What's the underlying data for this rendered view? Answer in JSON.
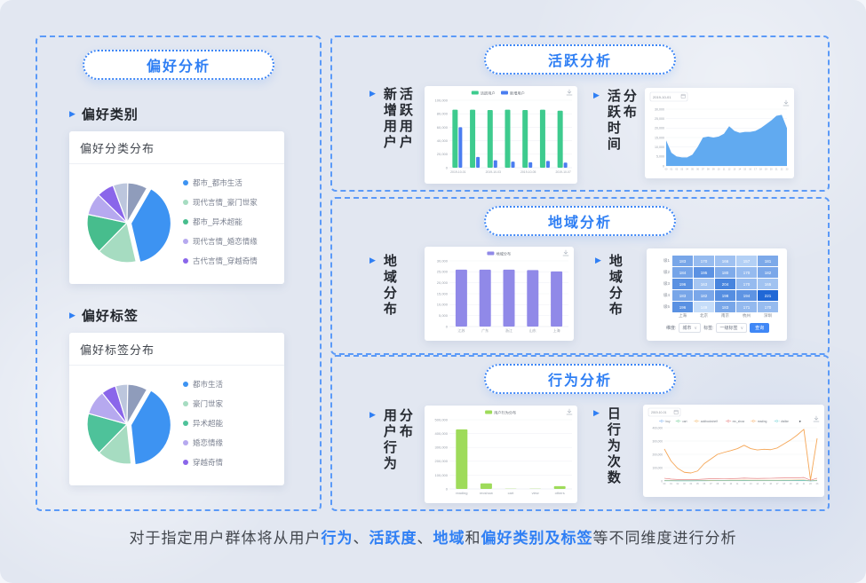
{
  "colors": {
    "accent": "#2f7ff4",
    "dashed_border": "#5b9af8",
    "background": "#e2e7f1",
    "card": "#ffffff"
  },
  "preference": {
    "title": "偏好分析",
    "sub1": {
      "heading": "偏好类别",
      "card_title": "偏好分类分布"
    },
    "sub2": {
      "heading": "偏好标签",
      "card_title": "偏好标签分布"
    }
  },
  "active": {
    "title": "活跃分析",
    "label1a": "新增用户",
    "label1b": "活跃用户",
    "label2a": "活跃时间",
    "label2b": "分布"
  },
  "region": {
    "title": "地域分析",
    "label1": "地域分布",
    "label2": "地域分布"
  },
  "behavior": {
    "title": "行为分析",
    "label1a": "用户行为",
    "label1b": "分布",
    "label2": "日行为次数"
  },
  "caption_parts": [
    {
      "text": "对于指定用户群体将从用户",
      "hl": false
    },
    {
      "text": "行为",
      "hl": true
    },
    {
      "text": "、",
      "hl": false
    },
    {
      "text": "活跃度",
      "hl": true
    },
    {
      "text": "、",
      "hl": false
    },
    {
      "text": "地域",
      "hl": true
    },
    {
      "text": "和",
      "hl": false
    },
    {
      "text": "偏好类别及标签",
      "hl": true
    },
    {
      "text": "等不同维度进行分析",
      "hl": false
    }
  ],
  "chart_data": [
    {
      "id": "pref_category_pie",
      "type": "pie",
      "title": "偏好分类分布",
      "start_deg": 30,
      "slices": [
        {
          "label": "都市_都市生活",
          "value": 38,
          "color": "#3d93f2",
          "offset": true
        },
        {
          "label": "现代言情_豪门世家",
          "value": 16,
          "color": "#a6dcc1"
        },
        {
          "label": "都市_异术超能",
          "value": 16,
          "color": "#47bd8d"
        },
        {
          "label": "现代言情_婚恋情缘",
          "value": 9,
          "color": "#b6a9ef"
        },
        {
          "label": "古代言情_穿越奇情",
          "value": 7,
          "color": "#8a66ea"
        },
        {
          "label": "",
          "value": 6,
          "color": "#bcc6dd"
        },
        {
          "label": "",
          "value": 8,
          "color": "#8f9cbb"
        }
      ]
    },
    {
      "id": "pref_tag_pie",
      "type": "pie",
      "title": "偏好标签分布",
      "start_deg": 30,
      "slices": [
        {
          "label": "都市生活",
          "value": 40,
          "color": "#3d93f2",
          "offset": true
        },
        {
          "label": "豪门世家",
          "value": 14,
          "color": "#a6dcc1"
        },
        {
          "label": "异术超能",
          "value": 17,
          "color": "#4ec29a"
        },
        {
          "label": "婚恋情缘",
          "value": 10,
          "color": "#b6a9ef"
        },
        {
          "label": "穿越奇情",
          "value": 6,
          "color": "#8a66ea"
        },
        {
          "label": "",
          "value": 5,
          "color": "#bcc6dd"
        },
        {
          "label": "",
          "value": 8,
          "color": "#8f9cbb"
        }
      ]
    },
    {
      "id": "active_users",
      "type": "grouped_bar",
      "ylim": [
        0,
        100000
      ],
      "ytick": 20000,
      "categories": [
        "2019-10-01",
        "2019-10-02",
        "2019-10-03",
        "2019-10-04",
        "2019-10-05",
        "2019-10-06",
        "2019-10-07"
      ],
      "x_labels_shown": [
        0,
        2,
        4,
        6
      ],
      "series": [
        {
          "name": "活跃用户",
          "color": "#3ecb8e",
          "values": [
            86000,
            86000,
            85500,
            86000,
            85500,
            86000,
            84500
          ]
        },
        {
          "name": "新增用户",
          "color": "#4a7df0",
          "values": [
            60000,
            16000,
            11000,
            9000,
            8000,
            10000,
            7500
          ]
        }
      ]
    },
    {
      "id": "active_time",
      "type": "area",
      "date_filter": "2019-10-01",
      "color": "#58a5ef",
      "ylim": [
        0,
        30000
      ],
      "ytick": 5000,
      "x": [
        "00",
        "01",
        "02",
        "03",
        "04",
        "05",
        "06",
        "07",
        "08",
        "09",
        "10",
        "11",
        "12",
        "13",
        "14",
        "15",
        "16",
        "17",
        "18",
        "19",
        "20",
        "21",
        "22",
        "23"
      ],
      "values": [
        13500,
        7000,
        5000,
        4500,
        4500,
        6000,
        10000,
        15000,
        15500,
        15000,
        15500,
        17000,
        21000,
        18500,
        17500,
        18000,
        18000,
        18500,
        20000,
        22000,
        24000,
        26500,
        27000,
        20000
      ]
    },
    {
      "id": "region_bar",
      "type": "bar",
      "legend": "地域分布",
      "color": "#9089e8",
      "ylim": [
        0,
        30000
      ],
      "ytick": 5000,
      "categories": [
        "江苏",
        "广东",
        "浙江",
        "山东",
        "上海"
      ],
      "values": [
        26000,
        26000,
        26000,
        25800,
        25200
      ]
    },
    {
      "id": "region_heatmap",
      "type": "heatmap",
      "rows": [
        "级1",
        "级2",
        "级3",
        "级4",
        "级5"
      ],
      "cols": [
        "上海",
        "北京",
        "南京",
        "杭州",
        "深圳"
      ],
      "values": [
        [
          183,
          170,
          166,
          157,
          181
        ],
        [
          184,
          195,
          180,
          170,
          182
        ],
        [
          196,
          163,
          204,
          170,
          165
        ],
        [
          183,
          182,
          198,
          194,
          221
        ],
        [
          196,
          149,
          183,
          171,
          170
        ]
      ],
      "controls": {
        "dim_label": "维度:",
        "dim_value": "城市",
        "tag_label": "标签:",
        "tag_value": "一级标签",
        "button": "查询"
      }
    },
    {
      "id": "behavior_bar",
      "type": "bar",
      "legend": "用户行为分布",
      "color": "#9edb5a",
      "ylim": [
        0,
        500000
      ],
      "ytick": 100000,
      "categories": [
        "reading",
        "recshow",
        "cart",
        "view",
        "others"
      ],
      "values": [
        430000,
        40000,
        2000,
        1500,
        20000
      ]
    },
    {
      "id": "behavior_line",
      "type": "line",
      "date_filter": "2019-10-01",
      "ylim": [
        0,
        400000
      ],
      "ytick": 100000,
      "x": [
        "00",
        "01",
        "02",
        "03",
        "04",
        "05",
        "06",
        "07",
        "08",
        "09",
        "10",
        "11",
        "12",
        "13",
        "14",
        "15",
        "16",
        "17",
        "18",
        "19",
        "20",
        "21",
        "22",
        "23"
      ],
      "series": [
        {
          "name": "buy",
          "color": "#6aa8f2",
          "values": [
            3000,
            2500,
            2000,
            2000,
            2000,
            2500,
            3000,
            3500,
            4000,
            4000,
            4000,
            4500,
            5000,
            4500,
            4000,
            4000,
            4000,
            4500,
            5000,
            5000,
            5500,
            6000,
            1000,
            5000
          ]
        },
        {
          "name": "cart",
          "color": "#5fc98a",
          "values": [
            2000,
            1800,
            1500,
            1500,
            1500,
            1800,
            2000,
            2200,
            2500,
            2500,
            2500,
            2800,
            3000,
            2800,
            2500,
            2500,
            2500,
            2800,
            3000,
            3000,
            3200,
            3500,
            800,
            3000
          ]
        },
        {
          "name": "addbookshelf",
          "color": "#f0b35c",
          "values": [
            4000,
            3500,
            3000,
            2800,
            2800,
            3200,
            4000,
            4500,
            5000,
            5000,
            5200,
            5500,
            6000,
            5500,
            5200,
            5200,
            5200,
            5500,
            6000,
            6500,
            7000,
            7500,
            1200,
            6000
          ]
        },
        {
          "name": "rec_show",
          "color": "#e36a6a",
          "values": [
            20000,
            14000,
            11000,
            9000,
            9000,
            11000,
            14000,
            16000,
            17000,
            17500,
            18000,
            19000,
            21000,
            19500,
            19000,
            19500,
            20000,
            21000,
            22000,
            23000,
            24000,
            26000,
            5000,
            21000
          ]
        },
        {
          "name": "reading",
          "color": "#f5a656",
          "values": [
            240000,
            150000,
            95000,
            65000,
            60000,
            75000,
            130000,
            165000,
            200000,
            215000,
            228000,
            243000,
            268000,
            243000,
            233000,
            238000,
            235000,
            248000,
            278000,
            308000,
            345000,
            388000,
            8000,
            320000
          ]
        },
        {
          "name": "dislike",
          "color": "#66cfd4",
          "values": [
            1500,
            1200,
            1000,
            1000,
            1000,
            1200,
            1500,
            1600,
            1800,
            1800,
            1800,
            2000,
            2200,
            2000,
            1800,
            1800,
            1800,
            2000,
            2200,
            2200,
            2400,
            2600,
            600,
            2200
          ]
        }
      ]
    }
  ]
}
